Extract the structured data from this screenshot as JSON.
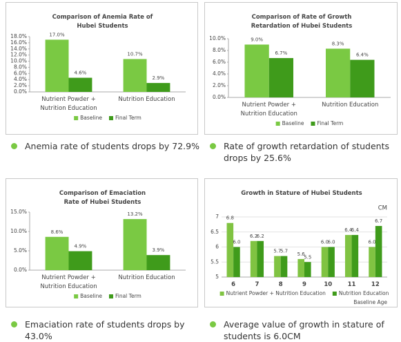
{
  "chart_data": [
    {
      "type": "bar",
      "title": "Comparison of Anemia Rate of Hubei Students",
      "categories": [
        "Nutrient Powder + Nutrition Education",
        "Nutrition Education"
      ],
      "series": [
        {
          "name": "Baseline",
          "color": "#7ac943",
          "values": [
            17.0,
            10.7
          ],
          "value_labels": [
            "17.0%",
            "10.7%"
          ]
        },
        {
          "name": "Final Term",
          "color": "#3f9b1b",
          "values": [
            4.6,
            2.9
          ],
          "value_labels": [
            "4.6%",
            "2.9%"
          ]
        }
      ],
      "ylim": [
        0,
        18
      ],
      "yticks": [
        {
          "value": 0,
          "label": "0.0%"
        },
        {
          "value": 2,
          "label": "2.0%"
        },
        {
          "value": 4,
          "label": "4.0%"
        },
        {
          "value": 6,
          "label": "6.0%"
        },
        {
          "value": 8,
          "label": "8.0%"
        },
        {
          "value": 10,
          "label": "10.0%"
        },
        {
          "value": 12,
          "label": "12.0%"
        },
        {
          "value": 14,
          "label": "14.0%"
        },
        {
          "value": 16,
          "label": "16.0%"
        },
        {
          "value": 18,
          "label": "18.0%"
        }
      ],
      "grid": false,
      "legend": "bottom"
    },
    {
      "type": "bar",
      "title": "Comparison of Rate of Growth Retardation of Hubei Students",
      "categories": [
        "Nutrient Powder + Nutrition Education",
        "Nutrition Education"
      ],
      "series": [
        {
          "name": "Baseline",
          "color": "#7ac943",
          "values": [
            9.0,
            8.3
          ],
          "value_labels": [
            "9.0%",
            "8.3%"
          ]
        },
        {
          "name": "Final Term",
          "color": "#3f9b1b",
          "values": [
            6.7,
            6.4
          ],
          "value_labels": [
            "6.7%",
            "6.4%"
          ]
        }
      ],
      "ylim": [
        0,
        10
      ],
      "yticks": [
        {
          "value": 0,
          "label": "0.0%"
        },
        {
          "value": 2,
          "label": "2.0%"
        },
        {
          "value": 4,
          "label": "4.0%"
        },
        {
          "value": 6,
          "label": "6.0%"
        },
        {
          "value": 8,
          "label": "8.0%"
        },
        {
          "value": 10,
          "label": "10.0%"
        }
      ],
      "grid": false,
      "legend": "bottom"
    },
    {
      "type": "bar",
      "title": "Comparison of Emaciation Rate of Hubei Students",
      "categories": [
        "Nutrient Powder + Nutrition Education",
        "Nutrition Education"
      ],
      "series": [
        {
          "name": "Baseline",
          "color": "#7ac943",
          "values": [
            8.6,
            13.2
          ],
          "value_labels": [
            "8.6%",
            "13.2%"
          ]
        },
        {
          "name": "Final Term",
          "color": "#3f9b1b",
          "values": [
            4.9,
            3.9
          ],
          "value_labels": [
            "4.9%",
            "3.9%"
          ]
        }
      ],
      "ylim": [
        0,
        15
      ],
      "yticks": [
        {
          "value": 0,
          "label": "0.0%"
        },
        {
          "value": 5,
          "label": "5.0%"
        },
        {
          "value": 10,
          "label": "10.0%"
        },
        {
          "value": 15,
          "label": "15.0%"
        }
      ],
      "grid": false,
      "legend": "bottom"
    },
    {
      "type": "bar",
      "title": "Growth in Stature of Hubei Students",
      "unit_label": "CM",
      "x_label": "Baseline Age",
      "categories": [
        "6",
        "7",
        "8",
        "9",
        "10",
        "11",
        "12"
      ],
      "series": [
        {
          "name": "Nutrient Powder + Nutrition Education",
          "color": "#80c342",
          "values": [
            6.8,
            6.2,
            5.7,
            5.6,
            6.0,
            6.4,
            6.0
          ],
          "value_labels": [
            "6.8",
            "6.2",
            "5.7",
            "5.6",
            "6.0",
            "6.4",
            "6.0"
          ]
        },
        {
          "name": "Nutrition Education",
          "color": "#3f9b1b",
          "values": [
            6.0,
            6.2,
            5.7,
            5.5,
            6.0,
            6.4,
            6.7
          ],
          "value_labels": [
            "6.0",
            "6.2",
            "5.7",
            "5.5",
            "6.0",
            "6.4",
            "6.7"
          ]
        }
      ],
      "ylim": [
        5,
        7
      ],
      "yticks": [
        5,
        5.5,
        6,
        6.5,
        7
      ],
      "grid": true,
      "legend": "bottom"
    }
  ],
  "captions": [
    "Anemia rate of students drops by 72.9%",
    "Rate of growth retardation of students drops by 25.6%",
    "Emaciation rate of students drops by 43.0%",
    "Average value of growth in stature of students is 6.0CM"
  ]
}
